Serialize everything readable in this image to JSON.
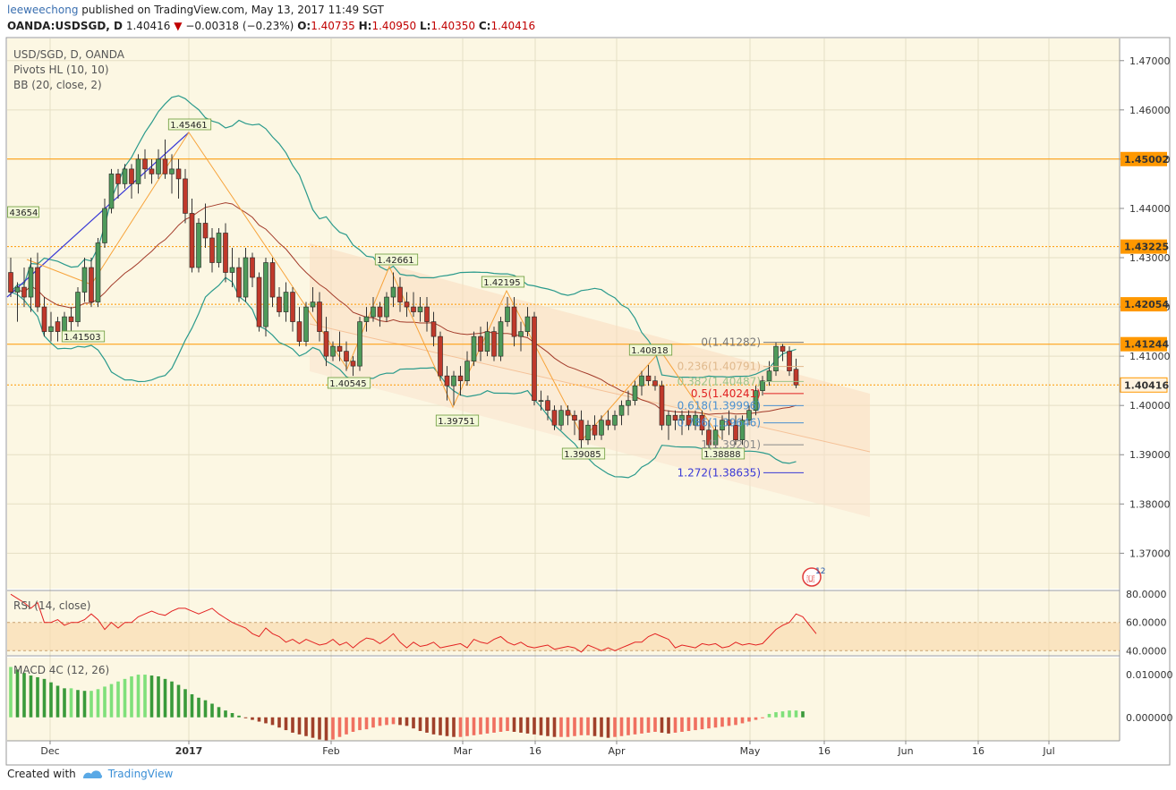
{
  "header": {
    "user": "leeweechong",
    "published": "published on TradingView.com, May 13, 2017 11:49 SGT",
    "symbol": "OANDA:USDSGD, D",
    "last": "1.40416",
    "change": "−0.00318 (−0.23%)",
    "o_label": "O:",
    "o": "1.40735",
    "h_label": "H:",
    "h": "1.40950",
    "l_label": "L:",
    "l": "1.40350",
    "c_label": "C:",
    "c": "1.40416"
  },
  "legend": {
    "title": "USD/SGD, D, OANDA",
    "pivots": "Pivots HL (10, 10)",
    "bb": "BB (20, close, 2)",
    "rsi": "RSI (14, close)",
    "macd": "MACD 4C (12, 26)"
  },
  "footer": {
    "created": "Created with",
    "brand": "TradingView"
  },
  "colors": {
    "bg": "#fcf7e3",
    "grid": "#e5dfc4",
    "up": "#3a7d44",
    "down": "#b3362c",
    "bb": "#2a9a8c",
    "basis": "#a33b2a",
    "price_badge": "#ff9800",
    "rsi": "#e32222",
    "zigzag_blue": "#3a3ad6",
    "zigzag_orange": "#f7a33a"
  },
  "chart_data": {
    "type": "candlestick",
    "symbol": "USD/SGD",
    "y_ticks": [
      "1.47000",
      "1.46000",
      "1.45000",
      "1.44000",
      "1.43000",
      "1.42000",
      "1.41000",
      "1.40000",
      "1.39000",
      "1.38000",
      "1.37000"
    ],
    "x_ticks": [
      "Dec",
      "2017",
      "Feb",
      "Mar",
      "16",
      "Apr",
      "May",
      "16",
      "Jun",
      "16",
      "Jul"
    ],
    "ylim": [
      1.3628,
      1.4745
    ],
    "candles": [
      [
        1.427,
        1.43,
        1.422,
        1.423
      ],
      [
        1.423,
        1.425,
        1.417,
        1.424
      ],
      [
        1.424,
        1.428,
        1.42,
        1.422
      ],
      [
        1.422,
        1.43,
        1.419,
        1.428
      ],
      [
        1.428,
        1.431,
        1.419,
        1.42
      ],
      [
        1.42,
        1.422,
        1.414,
        1.415
      ],
      [
        1.415,
        1.419,
        1.413,
        1.416
      ],
      [
        1.417,
        1.418,
        1.413,
        1.415
      ],
      [
        1.415,
        1.419,
        1.414,
        1.418
      ],
      [
        1.418,
        1.42,
        1.414,
        1.417
      ],
      [
        1.417,
        1.424,
        1.416,
        1.423
      ],
      [
        1.423,
        1.43,
        1.421,
        1.428
      ],
      [
        1.428,
        1.43,
        1.42,
        1.421
      ],
      [
        1.421,
        1.434,
        1.42,
        1.433
      ],
      [
        1.433,
        1.442,
        1.432,
        1.44
      ],
      [
        1.44,
        1.448,
        1.439,
        1.447
      ],
      [
        1.447,
        1.448,
        1.442,
        1.445
      ],
      [
        1.445,
        1.449,
        1.444,
        1.448
      ],
      [
        1.448,
        1.449,
        1.442,
        1.445
      ],
      [
        1.445,
        1.451,
        1.443,
        1.45
      ],
      [
        1.45,
        1.452,
        1.446,
        1.448
      ],
      [
        1.448,
        1.45,
        1.445,
        1.447
      ],
      [
        1.447,
        1.452,
        1.446,
        1.45
      ],
      [
        1.45,
        1.454,
        1.446,
        1.447
      ],
      [
        1.447,
        1.451,
        1.443,
        1.448
      ],
      [
        1.448,
        1.45,
        1.442,
        1.446
      ],
      [
        1.446,
        1.448,
        1.437,
        1.439
      ],
      [
        1.439,
        1.442,
        1.427,
        1.428
      ],
      [
        1.428,
        1.438,
        1.427,
        1.437
      ],
      [
        1.437,
        1.441,
        1.432,
        1.434
      ],
      [
        1.434,
        1.436,
        1.427,
        1.429
      ],
      [
        1.429,
        1.436,
        1.428,
        1.435
      ],
      [
        1.435,
        1.437,
        1.425,
        1.427
      ],
      [
        1.427,
        1.432,
        1.424,
        1.428
      ],
      [
        1.428,
        1.43,
        1.421,
        1.422
      ],
      [
        1.422,
        1.432,
        1.421,
        1.43
      ],
      [
        1.43,
        1.431,
        1.424,
        1.426
      ],
      [
        1.426,
        1.427,
        1.415,
        1.416
      ],
      [
        1.416,
        1.43,
        1.414,
        1.429
      ],
      [
        1.429,
        1.43,
        1.42,
        1.422
      ],
      [
        1.422,
        1.424,
        1.418,
        1.419
      ],
      [
        1.419,
        1.425,
        1.417,
        1.423
      ],
      [
        1.423,
        1.424,
        1.415,
        1.417
      ],
      [
        1.417,
        1.42,
        1.412,
        1.413
      ],
      [
        1.413,
        1.421,
        1.412,
        1.42
      ],
      [
        1.42,
        1.424,
        1.419,
        1.421
      ],
      [
        1.421,
        1.423,
        1.413,
        1.415
      ],
      [
        1.415,
        1.418,
        1.408,
        1.41
      ],
      [
        1.41,
        1.413,
        1.409,
        1.412
      ],
      [
        1.412,
        1.415,
        1.409,
        1.411
      ],
      [
        1.411,
        1.413,
        1.407,
        1.409
      ],
      [
        1.409,
        1.41,
        1.406,
        1.408
      ],
      [
        1.408,
        1.418,
        1.407,
        1.417
      ],
      [
        1.417,
        1.42,
        1.415,
        1.418
      ],
      [
        1.418,
        1.422,
        1.417,
        1.42
      ],
      [
        1.42,
        1.421,
        1.416,
        1.418
      ],
      [
        1.418,
        1.423,
        1.417,
        1.422
      ],
      [
        1.422,
        1.427,
        1.42,
        1.424
      ],
      [
        1.424,
        1.426,
        1.419,
        1.421
      ],
      [
        1.421,
        1.423,
        1.418,
        1.42
      ],
      [
        1.42,
        1.423,
        1.418,
        1.419
      ],
      [
        1.419,
        1.422,
        1.417,
        1.42
      ],
      [
        1.42,
        1.422,
        1.415,
        1.417
      ],
      [
        1.417,
        1.419,
        1.412,
        1.414
      ],
      [
        1.414,
        1.415,
        1.405,
        1.406
      ],
      [
        1.406,
        1.408,
        1.401,
        1.404
      ],
      [
        1.404,
        1.407,
        1.4,
        1.406
      ],
      [
        1.406,
        1.408,
        1.402,
        1.405
      ],
      [
        1.405,
        1.411,
        1.404,
        1.409
      ],
      [
        1.409,
        1.415,
        1.408,
        1.414
      ],
      [
        1.414,
        1.416,
        1.409,
        1.411
      ],
      [
        1.411,
        1.417,
        1.41,
        1.415
      ],
      [
        1.415,
        1.416,
        1.409,
        1.41
      ],
      [
        1.41,
        1.418,
        1.409,
        1.417
      ],
      [
        1.417,
        1.422,
        1.416,
        1.42
      ],
      [
        1.42,
        1.422,
        1.412,
        1.414
      ],
      [
        1.414,
        1.417,
        1.411,
        1.415
      ],
      [
        1.415,
        1.42,
        1.414,
        1.418
      ],
      [
        1.418,
        1.419,
        1.4,
        1.401
      ],
      [
        1.401,
        1.403,
        1.399,
        1.401
      ],
      [
        1.401,
        1.402,
        1.397,
        1.399
      ],
      [
        1.399,
        1.4,
        1.395,
        1.396
      ],
      [
        1.396,
        1.4,
        1.395,
        1.399
      ],
      [
        1.399,
        1.4,
        1.396,
        1.398
      ],
      [
        1.398,
        1.399,
        1.394,
        1.397
      ],
      [
        1.397,
        1.399,
        1.391,
        1.393
      ],
      [
        1.393,
        1.397,
        1.392,
        1.396
      ],
      [
        1.396,
        1.398,
        1.393,
        1.394
      ],
      [
        1.394,
        1.398,
        1.393,
        1.397
      ],
      [
        1.397,
        1.399,
        1.395,
        1.396
      ],
      [
        1.396,
        1.399,
        1.395,
        1.398
      ],
      [
        1.398,
        1.401,
        1.396,
        1.4
      ],
      [
        1.4,
        1.403,
        1.398,
        1.401
      ],
      [
        1.401,
        1.405,
        1.4,
        1.404
      ],
      [
        1.404,
        1.407,
        1.402,
        1.406
      ],
      [
        1.406,
        1.4082,
        1.404,
        1.405
      ],
      [
        1.405,
        1.406,
        1.403,
        1.404
      ],
      [
        1.404,
        1.405,
        1.395,
        1.396
      ],
      [
        1.396,
        1.399,
        1.393,
        1.398
      ],
      [
        1.398,
        1.399,
        1.395,
        1.397
      ],
      [
        1.397,
        1.399,
        1.394,
        1.398
      ],
      [
        1.398,
        1.399,
        1.395,
        1.396
      ],
      [
        1.396,
        1.399,
        1.395,
        1.398
      ],
      [
        1.398,
        1.399,
        1.394,
        1.395
      ],
      [
        1.395,
        1.397,
        1.391,
        1.392
      ],
      [
        1.392,
        1.396,
        1.391,
        1.395
      ],
      [
        1.395,
        1.398,
        1.393,
        1.397
      ],
      [
        1.397,
        1.399,
        1.394,
        1.396
      ],
      [
        1.396,
        1.398,
        1.392,
        1.393
      ],
      [
        1.393,
        1.398,
        1.392,
        1.397
      ],
      [
        1.397,
        1.4,
        1.396,
        1.399
      ],
      [
        1.399,
        1.404,
        1.398,
        1.403
      ],
      [
        1.403,
        1.406,
        1.402,
        1.405
      ],
      [
        1.405,
        1.409,
        1.404,
        1.407
      ],
      [
        1.407,
        1.4128,
        1.406,
        1.412
      ],
      [
        1.412,
        1.4125,
        1.409,
        1.411
      ],
      [
        1.411,
        1.412,
        1.406,
        1.407
      ],
      [
        1.40735,
        1.4095,
        1.4035,
        1.40416
      ]
    ],
    "horizontal_levels": [
      {
        "value": 1.45002,
        "label": "1.45002",
        "style": "solid"
      },
      {
        "value": 1.43225,
        "label": "1.43225",
        "style": "dotted"
      },
      {
        "value": 1.42054,
        "label": "1.42054",
        "style": "dotted"
      },
      {
        "value": 1.41244,
        "label": "1.41244",
        "style": "solid"
      },
      {
        "value": 1.40416,
        "label": "1.40416",
        "style": "dotted"
      }
    ],
    "pivot_labels": [
      "43654",
      "1.41503",
      "1.45461",
      "1.42661",
      "1.40545",
      "1.42195",
      "1.39751",
      "1.39085",
      "1.40818",
      "1.38888"
    ],
    "fib_levels": [
      {
        "text": "0(1.41282)",
        "color": "#777777"
      },
      {
        "text": "0.236(1.40791)",
        "color": "#e0b98c"
      },
      {
        "text": "0.382(1.40487)",
        "color": "#9cc48a"
      },
      {
        "text": "0.5(1.40241)",
        "color": "#e02020"
      },
      {
        "text": "0.618(1.39996)",
        "color": "#4a90d0"
      },
      {
        "text": "0.786(1.39646)",
        "color": "#4a90d0"
      },
      {
        "text": "1(1.39201)",
        "color": "#888888"
      },
      {
        "text": "1.272(1.38635)",
        "color": "#3a3ad6"
      }
    ],
    "rsi": {
      "ticks": [
        "80.0000",
        "60.0000",
        "40.0000"
      ],
      "ylim": [
        37,
        82
      ],
      "band": [
        40,
        60
      ],
      "values": [
        80,
        77,
        74,
        70,
        74,
        60,
        60,
        62,
        58,
        60,
        60,
        62,
        66,
        62,
        55,
        60,
        56,
        60,
        60,
        64,
        66,
        68,
        66,
        65,
        68,
        70,
        70,
        68,
        66,
        68,
        70,
        66,
        63,
        60,
        58,
        56,
        52,
        50,
        56,
        52,
        50,
        46,
        48,
        45,
        48,
        46,
        44,
        45,
        48,
        44,
        46,
        42,
        46,
        49,
        48,
        45,
        48,
        52,
        46,
        42,
        46,
        43,
        44,
        46,
        42,
        43,
        44,
        45,
        42,
        48,
        46,
        45,
        48,
        50,
        46,
        44,
        46,
        43,
        42,
        43,
        44,
        41,
        42,
        43,
        42,
        39,
        44,
        42,
        40,
        42,
        40,
        42,
        44,
        46,
        46,
        50,
        52,
        50,
        48,
        42,
        44,
        43,
        42,
        45,
        44,
        45,
        42,
        43,
        46,
        44,
        45,
        44,
        45,
        50,
        55,
        58,
        60,
        66,
        64,
        58,
        52
      ]
    },
    "macd": {
      "ticks": [
        "0.010000",
        "0.000000"
      ],
      "ylim": [
        -0.0055,
        0.014
      ],
      "values": [
        0.0118,
        0.0112,
        0.0104,
        0.0098,
        0.0094,
        0.009,
        0.0082,
        0.0074,
        0.0068,
        0.0068,
        0.0064,
        0.0062,
        0.0062,
        0.0066,
        0.0072,
        0.0078,
        0.0084,
        0.009,
        0.0096,
        0.01,
        0.01,
        0.0098,
        0.0096,
        0.009,
        0.0084,
        0.0076,
        0.0066,
        0.0054,
        0.0046,
        0.004,
        0.0032,
        0.0024,
        0.0016,
        0.001,
        0.0004,
        -0.0002,
        -0.0006,
        -0.001,
        -0.0014,
        -0.0018,
        -0.0024,
        -0.003,
        -0.0036,
        -0.004,
        -0.0044,
        -0.0048,
        -0.0052,
        -0.0054,
        -0.0052,
        -0.0046,
        -0.004,
        -0.0034,
        -0.003,
        -0.0028,
        -0.0024,
        -0.002,
        -0.0018,
        -0.0016,
        -0.0018,
        -0.002,
        -0.0026,
        -0.0032,
        -0.0036,
        -0.004,
        -0.0042,
        -0.0044,
        -0.0046,
        -0.0046,
        -0.0044,
        -0.0042,
        -0.004,
        -0.0038,
        -0.0036,
        -0.0034,
        -0.0032,
        -0.0034,
        -0.0036,
        -0.0038,
        -0.004,
        -0.0042,
        -0.0044,
        -0.0046,
        -0.0046,
        -0.0046,
        -0.0044,
        -0.0042,
        -0.0042,
        -0.0044,
        -0.0046,
        -0.0048,
        -0.0046,
        -0.0044,
        -0.0042,
        -0.004,
        -0.0038,
        -0.0036,
        -0.0034,
        -0.0036,
        -0.0038,
        -0.0036,
        -0.0034,
        -0.0032,
        -0.003,
        -0.0028,
        -0.0026,
        -0.0024,
        -0.0022,
        -0.002,
        -0.0018,
        -0.0014,
        -0.001,
        -0.0006,
        -0.0002,
        0.0008,
        0.0012,
        0.0014,
        0.0016,
        0.0016,
        0.0014
      ]
    }
  }
}
